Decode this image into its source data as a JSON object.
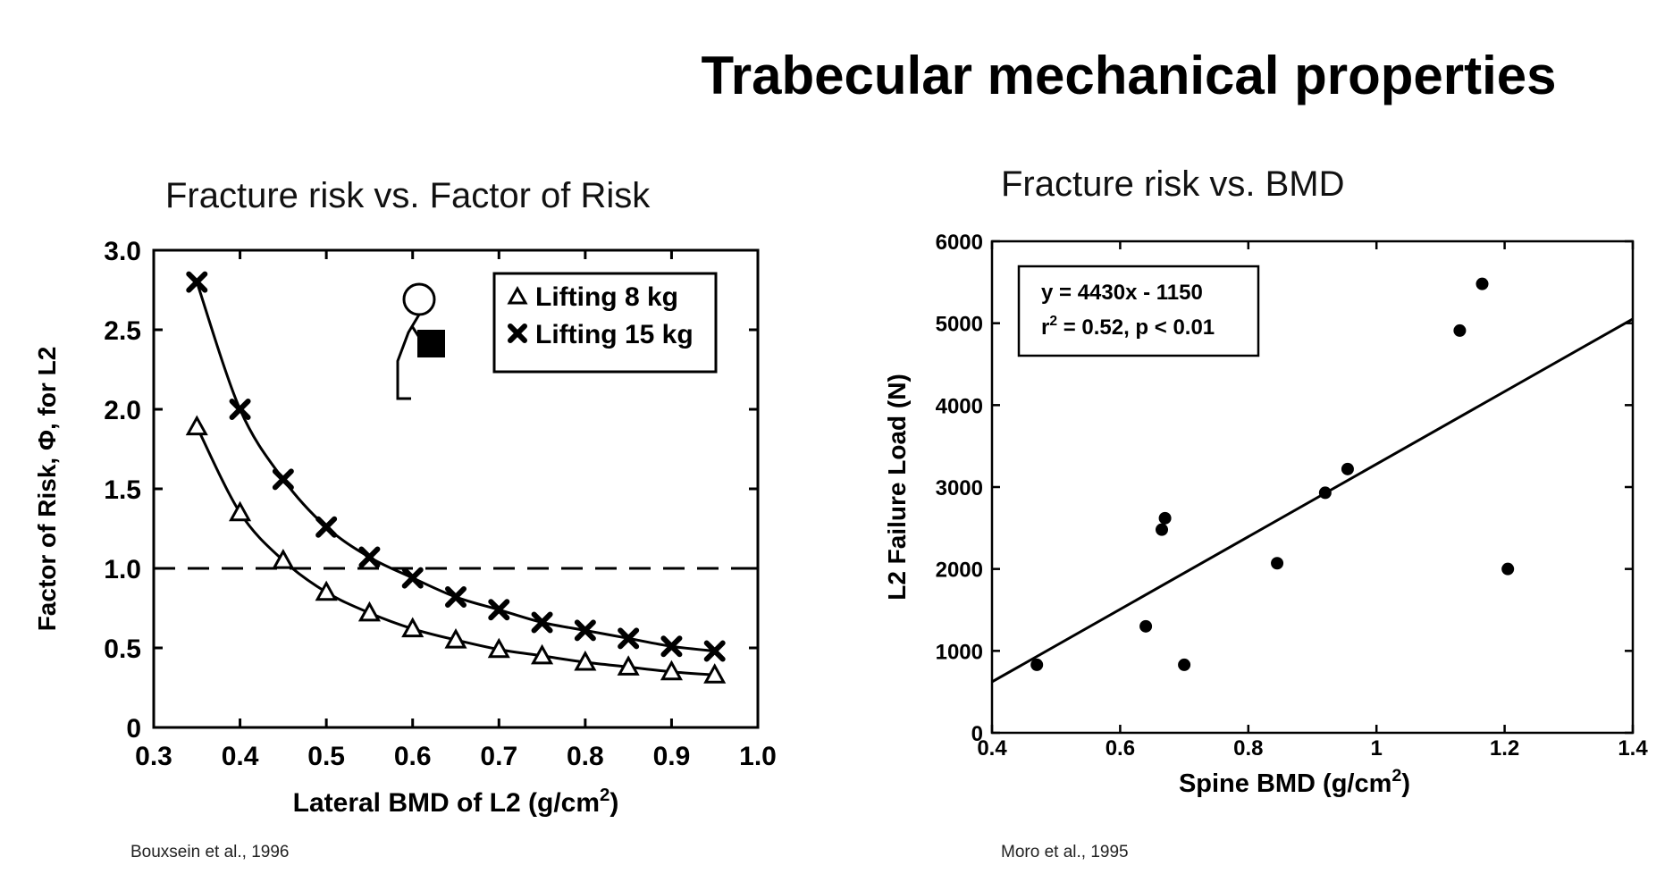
{
  "slide": {
    "title": "Trabecular mechanical properties"
  },
  "left_panel": {
    "subtitle": "Fracture risk vs. Factor of Risk",
    "citation": "Bouxsein et al., 1996"
  },
  "right_panel": {
    "subtitle": "Fracture risk vs. BMD",
    "citation": "Moro et al., 1995"
  },
  "chart_data": [
    {
      "type": "line",
      "xlabel": "Lateral BMD of L2 (g/cm2)",
      "ylabel": "Factor of Risk, Φ, for L2",
      "xlim": [
        0.3,
        1.0
      ],
      "ylim": [
        0,
        3.0
      ],
      "x_ticks": [
        "0.3",
        "0.4",
        "0.5",
        "0.6",
        "0.7",
        "0.8",
        "0.9",
        "1.0"
      ],
      "y_ticks": [
        "0",
        "0.5",
        "1.0",
        "1.5",
        "2.0",
        "2.5",
        "3.0"
      ],
      "reference_line": {
        "y": 1.0,
        "style": "dashed"
      },
      "legend_position": "top-right",
      "series": [
        {
          "name": "Lifting 8 kg",
          "marker": "triangle",
          "x": [
            0.35,
            0.4,
            0.45,
            0.5,
            0.55,
            0.6,
            0.65,
            0.7,
            0.75,
            0.8,
            0.85,
            0.9,
            0.95
          ],
          "y": [
            1.89,
            1.35,
            1.05,
            0.85,
            0.72,
            0.62,
            0.55,
            0.49,
            0.45,
            0.41,
            0.38,
            0.35,
            0.33
          ]
        },
        {
          "name": "Lifting 15 kg",
          "marker": "x",
          "x": [
            0.35,
            0.4,
            0.45,
            0.5,
            0.55,
            0.6,
            0.65,
            0.7,
            0.75,
            0.8,
            0.85,
            0.9,
            0.95
          ],
          "y": [
            2.8,
            2.0,
            1.56,
            1.26,
            1.07,
            0.94,
            0.82,
            0.74,
            0.66,
            0.61,
            0.56,
            0.51,
            0.48
          ]
        }
      ]
    },
    {
      "type": "scatter",
      "xlabel": "Spine BMD (g/cm2)",
      "ylabel": "L2 Failure Load (N)",
      "xlim": [
        0.4,
        1.4
      ],
      "ylim": [
        0,
        6000
      ],
      "x_ticks": [
        "0.4",
        "0.6",
        "0.8",
        "1",
        "1.2",
        "1.4"
      ],
      "y_ticks": [
        "0",
        "1000",
        "2000",
        "3000",
        "4000",
        "5000",
        "6000"
      ],
      "fit_line": {
        "slope": 4430,
        "intercept": -1150
      },
      "annotation_lines": [
        "y = 4430x - 1150",
        "r2 = 0.52, p < 0.01"
      ],
      "legend_position": "top-left",
      "points": [
        {
          "x": 0.47,
          "y": 830
        },
        {
          "x": 0.64,
          "y": 1300
        },
        {
          "x": 0.665,
          "y": 2480
        },
        {
          "x": 0.67,
          "y": 2620
        },
        {
          "x": 0.7,
          "y": 830
        },
        {
          "x": 0.845,
          "y": 2070
        },
        {
          "x": 0.92,
          "y": 2930
        },
        {
          "x": 0.955,
          "y": 3220
        },
        {
          "x": 1.13,
          "y": 4910
        },
        {
          "x": 1.165,
          "y": 5480
        },
        {
          "x": 1.205,
          "y": 2000
        }
      ]
    }
  ]
}
